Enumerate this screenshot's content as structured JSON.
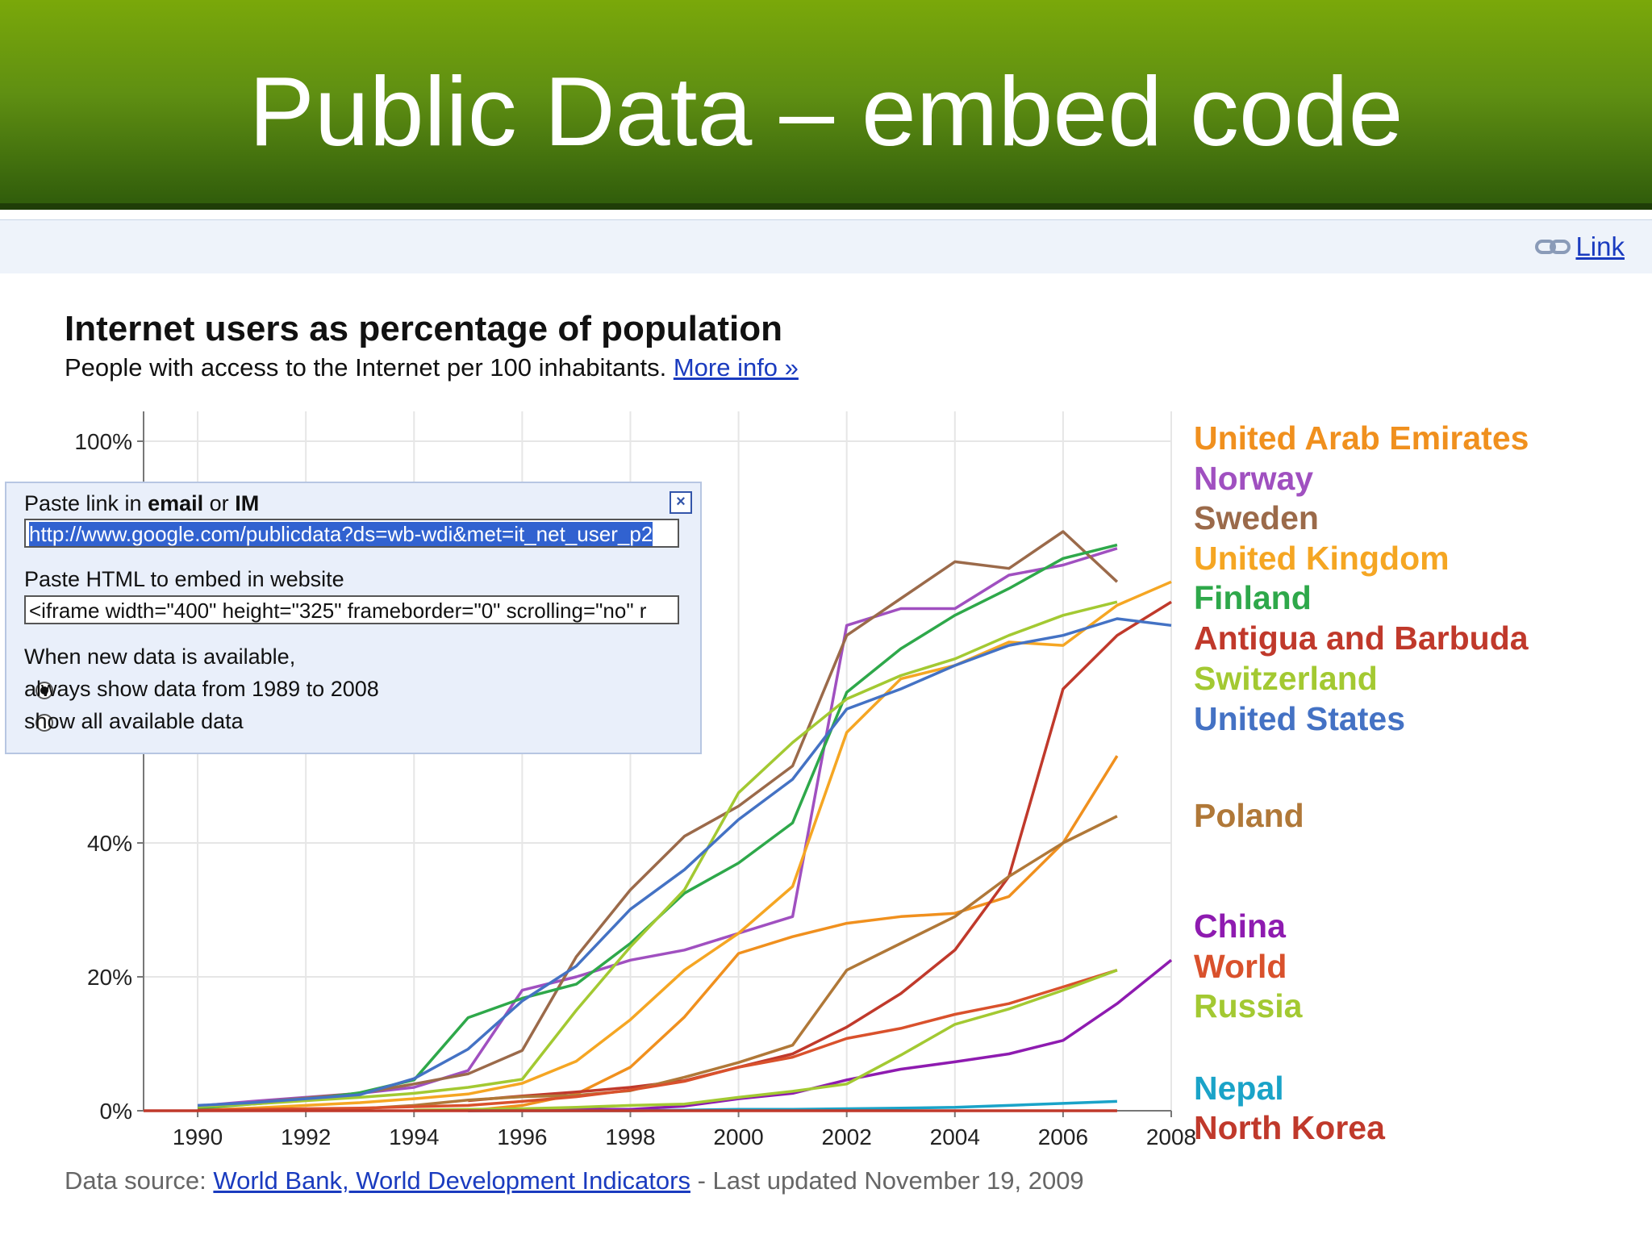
{
  "slide": {
    "title": "Public Data – embed code"
  },
  "toolbar": {
    "link_label": "Link",
    "link_icon": "link-chain-icon"
  },
  "chart_data": {
    "type": "line",
    "title": "Internet users as percentage of population",
    "subtitle": "People with access to the Internet per 100 inhabitants.",
    "more_info": "More info »",
    "x_ticks": [
      "1990",
      "1992",
      "1994",
      "1996",
      "1998",
      "2000",
      "2002",
      "2004",
      "2006",
      "2008"
    ],
    "y_ticks": [
      "0%",
      "20%",
      "40%",
      "100%"
    ],
    "y_tick_values": [
      0,
      20,
      40,
      100
    ],
    "xlim": [
      1989,
      2008
    ],
    "ylim": [
      0,
      100
    ],
    "grid": true,
    "legend_position": "right",
    "series": [
      {
        "name": "United Arab Emirates",
        "color": "#f0901e",
        "x": [
          1995,
          1996,
          1997,
          1998,
          1999,
          2000,
          2001,
          2002,
          2003,
          2004,
          2005,
          2006,
          2007
        ],
        "y": [
          0,
          0.8,
          2.5,
          6.5,
          14,
          23.5,
          26,
          28,
          29,
          29.5,
          32,
          40,
          53
        ]
      },
      {
        "name": "Norway",
        "color": "#a050c0",
        "x": [
          1990,
          1991,
          1992,
          1993,
          1994,
          1995,
          1996,
          1997,
          1998,
          1999,
          2000,
          2001,
          2002,
          2003,
          2004,
          2005,
          2006,
          2007
        ],
        "y": [
          0.7,
          1.4,
          2,
          2.6,
          3.5,
          6,
          18,
          20,
          22.5,
          24,
          26.5,
          29,
          72.5,
          75,
          75,
          80,
          81.5,
          84
        ]
      },
      {
        "name": "Sweden",
        "color": "#9b6a4a",
        "x": [
          1990,
          1991,
          1992,
          1993,
          1994,
          1995,
          1996,
          1997,
          1998,
          1999,
          2000,
          2001,
          2002,
          2003,
          2004,
          2005,
          2006,
          2007
        ],
        "y": [
          0.6,
          1.2,
          1.9,
          2.6,
          4,
          5.5,
          9,
          23,
          33,
          41,
          45.5,
          51.5,
          71,
          76.5,
          82,
          81,
          86.5,
          79
        ]
      },
      {
        "name": "United Kingdom",
        "color": "#f5a623",
        "x": [
          1990,
          1991,
          1992,
          1993,
          1994,
          1995,
          1996,
          1997,
          1998,
          1999,
          2000,
          2001,
          2002,
          2003,
          2004,
          2005,
          2006,
          2007,
          2008
        ],
        "y": [
          0.1,
          0.4,
          0.8,
          1.2,
          1.8,
          2.5,
          4.1,
          7.4,
          13.6,
          21,
          26.5,
          33.5,
          56.5,
          64.5,
          66.5,
          70,
          69.5,
          75.5,
          79
        ]
      },
      {
        "name": "Finland",
        "color": "#2ea84a",
        "x": [
          1990,
          1991,
          1992,
          1993,
          1994,
          1995,
          1996,
          1997,
          1998,
          1999,
          2000,
          2001,
          2002,
          2003,
          2004,
          2005,
          2006,
          2007
        ],
        "y": [
          0.4,
          1,
          1.6,
          2.7,
          4.6,
          13.9,
          16.8,
          18.9,
          25,
          32.5,
          37,
          43,
          62.5,
          69,
          74,
          78,
          82.5,
          84.5
        ]
      },
      {
        "name": "Antigua and Barbuda",
        "color": "#c0392b",
        "x": [
          1995,
          1996,
          1997,
          1998,
          1999,
          2000,
          2001,
          2002,
          2003,
          2004,
          2005,
          2006,
          2007,
          2008
        ],
        "y": [
          1.5,
          2.2,
          2.8,
          3.5,
          4.5,
          6.5,
          8.5,
          12.5,
          17.5,
          24,
          35,
          63,
          71,
          76
        ]
      },
      {
        "name": "Switzerland",
        "color": "#a3c932",
        "x": [
          1990,
          1991,
          1992,
          1993,
          1994,
          1995,
          1996,
          1997,
          1998,
          1999,
          2000,
          2001,
          2002,
          2003,
          2004,
          2005,
          2006,
          2007
        ],
        "y": [
          0.6,
          1,
          1.5,
          2,
          2.6,
          3.5,
          4.7,
          15,
          24.5,
          33,
          47.5,
          55,
          61.5,
          65,
          67.5,
          71,
          74,
          76
        ]
      },
      {
        "name": "United States",
        "color": "#4472c4",
        "x": [
          1990,
          1991,
          1992,
          1993,
          1994,
          1995,
          1996,
          1997,
          1998,
          1999,
          2000,
          2001,
          2002,
          2003,
          2004,
          2005,
          2006,
          2007,
          2008
        ],
        "y": [
          0.8,
          1.2,
          1.8,
          2.4,
          4.8,
          9.2,
          16.4,
          21.6,
          30.1,
          36,
          43.5,
          49.5,
          60,
          63,
          66.5,
          69.5,
          71,
          73.5,
          72.5
        ]
      },
      {
        "name": "Poland",
        "color": "#b07838",
        "x": [
          1992,
          1993,
          1994,
          1995,
          1996,
          1997,
          1998,
          1999,
          2000,
          2001,
          2002,
          2003,
          2004,
          2005,
          2006,
          2007
        ],
        "y": [
          0.1,
          0.3,
          0.8,
          1.6,
          2.1,
          2.3,
          3,
          5,
          7.2,
          9.8,
          21,
          25,
          29,
          35,
          40,
          44
        ]
      },
      {
        "name": "China",
        "color": "#8e1bb0",
        "x": [
          1995,
          1996,
          1997,
          1998,
          1999,
          2000,
          2001,
          2002,
          2003,
          2004,
          2005,
          2006,
          2007,
          2008
        ],
        "y": [
          0,
          0.1,
          0.2,
          0.2,
          0.7,
          1.8,
          2.6,
          4.6,
          6.2,
          7.3,
          8.5,
          10.5,
          16,
          22.5
        ]
      },
      {
        "name": "World",
        "color": "#d9512c",
        "x": [
          1990,
          1991,
          1992,
          1993,
          1994,
          1995,
          1996,
          1997,
          1998,
          1999,
          2000,
          2001,
          2002,
          2003,
          2004,
          2005,
          2006,
          2007
        ],
        "y": [
          0.1,
          0.2,
          0.3,
          0.4,
          0.6,
          0.8,
          1.4,
          2.1,
          3.1,
          4.4,
          6.5,
          8,
          10.8,
          12.3,
          14.4,
          16,
          18.5,
          21
        ]
      },
      {
        "name": "Russia",
        "color": "#a3c932",
        "x": [
          1994,
          1995,
          1996,
          1997,
          1998,
          1999,
          2000,
          2001,
          2002,
          2003,
          2004,
          2005,
          2006,
          2007
        ],
        "y": [
          0.1,
          0.2,
          0.3,
          0.5,
          0.8,
          1,
          2,
          2.9,
          4,
          8.3,
          12.9,
          15.2,
          18,
          21
        ]
      },
      {
        "name": "Nepal",
        "color": "#1aa3c8",
        "x": [
          1995,
          1996,
          1997,
          1998,
          1999,
          2000,
          2001,
          2002,
          2003,
          2004,
          2005,
          2006,
          2007
        ],
        "y": [
          0,
          0,
          0,
          0,
          0.1,
          0.2,
          0.2,
          0.3,
          0.4,
          0.5,
          0.8,
          1.1,
          1.4
        ]
      },
      {
        "name": "North Korea",
        "color": "#c0392b",
        "x": [
          1989,
          2007
        ],
        "y": [
          0,
          0
        ]
      }
    ],
    "source_prefix": "Data source:",
    "source_link": "World Bank, World Development Indicators",
    "source_suffix": "- Last updated November 19, 2009"
  },
  "embed_popup": {
    "link_label_prefix": "Paste link in",
    "link_label_bold": "email",
    "link_label_or": "or",
    "link_label_im": "IM",
    "link_value": "http://www.google.com/publicdata?ds=wb-wdi&met=it_net_user_p2",
    "embed_label": "Paste HTML to embed in website",
    "embed_value": "<iframe width=\"400\" height=\"325\" frameborder=\"0\" scrolling=\"no\" r",
    "option_heading": "When new data is available,",
    "option_fixed": "always show data from 1989 to 2008",
    "option_all": "show all available data",
    "selected_option": "always show data from 1989 to 2008"
  }
}
